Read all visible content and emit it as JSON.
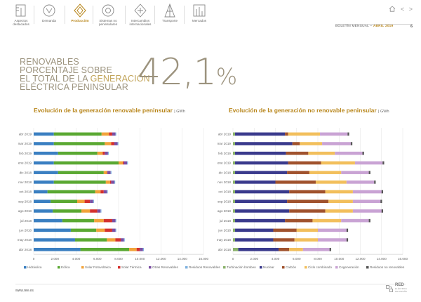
{
  "nav": [
    {
      "label": "Aspectos destacados",
      "icon": "document-icon"
    },
    {
      "label": "Demanda",
      "icon": "lamp-icon"
    },
    {
      "label": "Producción",
      "icon": "production-icon"
    },
    {
      "label": "Sistemas no peninsulares",
      "icon": "islands-icon"
    },
    {
      "label": "Intercambios internacionales",
      "icon": "exchange-icon"
    },
    {
      "label": "Transporte",
      "icon": "tower-icon"
    },
    {
      "label": "Mercados",
      "icon": "market-icon"
    }
  ],
  "nav_active": 2,
  "header": {
    "bulletin": "BOLETÍN MENSUAL",
    "sep": "–",
    "period": "ABRIL 2019",
    "page": "6",
    "arrows": "< >"
  },
  "headline": {
    "line1": "RENOVABLES",
    "line2": "PORCENTAJE SOBRE",
    "line3a": "EL TOTAL DE LA ",
    "line3b": "GENERACIÓN",
    "line4": "ELÉCTRICA PENINSULAR",
    "value": "42,1",
    "unit": "%"
  },
  "footer": {
    "url": "www.ree.es",
    "logo_main": "RED",
    "logo_sub1": "ELÉCTRICA",
    "logo_sub2": "DE ESPAÑA"
  },
  "chart_data": [
    {
      "type": "bar",
      "orientation": "horizontal",
      "stacked": true,
      "title": "Evolución de la generación renovable peninsular",
      "unit": "GWh",
      "categories": [
        "abr 2019",
        "mar 2019",
        "feb 2019",
        "ene 2019",
        "dic 2018",
        "nov 2018",
        "oct 2018",
        "sep 2018",
        "ago 2018",
        "jul 2018",
        "jun 2018",
        "may 2018",
        "abr 2018"
      ],
      "xlim": [
        0,
        16000
      ],
      "xticks": [
        0,
        2000,
        4000,
        6000,
        8000,
        10000,
        12000,
        14000,
        16000
      ],
      "xtick_labels": [
        "0",
        "2.000",
        "4.000",
        "6.000",
        "8.000",
        "10.000",
        "12.000",
        "14.000",
        "16.000"
      ],
      "grid": true,
      "legend": "bottom",
      "series": [
        {
          "name": "Hidráulica",
          "color": "#3a7fc1",
          "values": [
            1900,
            1900,
            2300,
            1900,
            2300,
            1900,
            1300,
            1600,
            1800,
            2700,
            3500,
            3900,
            4400
          ]
        },
        {
          "name": "Eólica",
          "color": "#5aa832",
          "values": [
            4500,
            4800,
            3700,
            6100,
            4300,
            4900,
            4500,
            2500,
            2700,
            3000,
            2400,
            3000,
            4600
          ]
        },
        {
          "name": "Solar Fotovoltaica",
          "color": "#f2a33a",
          "values": [
            700,
            600,
            500,
            400,
            300,
            400,
            500,
            700,
            800,
            900,
            800,
            800,
            700
          ]
        },
        {
          "name": "Solar Térmica",
          "color": "#d4312e",
          "values": [
            300,
            300,
            200,
            100,
            50,
            100,
            300,
            500,
            700,
            800,
            700,
            500,
            300
          ]
        },
        {
          "name": "Otras Renovables",
          "color": "#7b4ea3",
          "values": [
            300,
            300,
            300,
            300,
            300,
            300,
            300,
            300,
            300,
            300,
            300,
            300,
            300
          ]
        },
        {
          "name": "Residuos Renovables",
          "color": "#7fb2e0",
          "values": [
            80,
            80,
            80,
            80,
            80,
            80,
            80,
            80,
            80,
            80,
            80,
            80,
            80
          ]
        }
      ]
    },
    {
      "type": "bar",
      "orientation": "horizontal",
      "stacked": true,
      "title": "Evolución de la generación no renovable peninsular",
      "unit": "GWh",
      "categories": [
        "abr 2019",
        "mar 2019",
        "feb 2019",
        "ene 2019",
        "dic 2018",
        "nov 2018",
        "oct 2018",
        "sep 2018",
        "ago 2018",
        "jul 2018",
        "jun 2018",
        "may 2018",
        "abr 2018"
      ],
      "xlim": [
        0,
        16000
      ],
      "xticks": [
        0,
        2000,
        4000,
        6000,
        8000,
        10000,
        12000,
        14000,
        16000
      ],
      "xtick_labels": [
        "0",
        "2.000",
        "4.000",
        "6.000",
        "8.000",
        "10.000",
        "12.000",
        "14.000",
        "16.000"
      ],
      "grid": true,
      "legend": "bottom",
      "series": [
        {
          "name": "Turbinación bombeo",
          "color": "#8ab26a",
          "values": [
            200,
            200,
            200,
            200,
            200,
            200,
            200,
            200,
            200,
            200,
            200,
            200,
            500
          ]
        },
        {
          "name": "Nuclear",
          "color": "#3a3a8c",
          "values": [
            4700,
            5400,
            4800,
            5000,
            4900,
            3800,
            5100,
            4900,
            5100,
            4700,
            3600,
            3600,
            3800
          ]
        },
        {
          "name": "Carbón",
          "color": "#a0522d",
          "values": [
            300,
            700,
            2100,
            3100,
            2100,
            3800,
            3400,
            3900,
            3400,
            2600,
            2200,
            2000,
            1000
          ]
        },
        {
          "name": "Ciclo combinado",
          "color": "#f2bf5c",
          "values": [
            3000,
            2100,
            2500,
            3200,
            3000,
            2900,
            2600,
            2300,
            2600,
            2700,
            2000,
            2200,
            1300
          ]
        },
        {
          "name": "Cogeneración",
          "color": "#c9a3d4",
          "values": [
            2600,
            2700,
            2600,
            2600,
            2600,
            2600,
            2700,
            2600,
            2700,
            2600,
            2700,
            2700,
            2500
          ]
        },
        {
          "name": "Residuos no renovables",
          "color": "#555555",
          "values": [
            150,
            150,
            150,
            150,
            150,
            150,
            150,
            150,
            150,
            150,
            150,
            150,
            150
          ]
        }
      ]
    }
  ]
}
